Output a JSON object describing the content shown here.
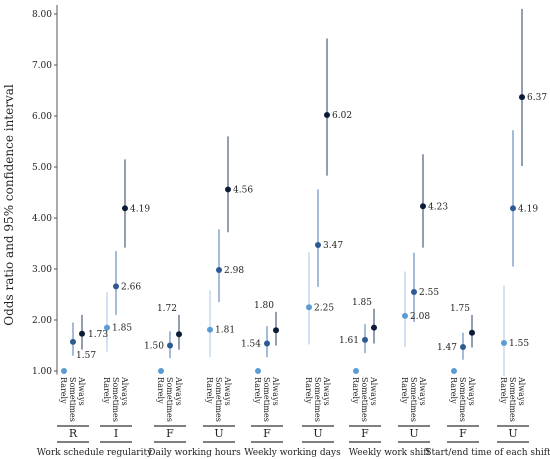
{
  "chart_data": {
    "type": "scatter",
    "title": "",
    "xlabel": "",
    "ylabel": "Odds ratio and 95% confidence interval",
    "ylim": [
      1.0,
      8.1
    ],
    "yticks": [
      "1.00",
      "2.00",
      "3.00",
      "4.00",
      "5.00",
      "6.00",
      "7.00",
      "8.00"
    ],
    "grid": false,
    "legend": "none",
    "levels": [
      "Rarely",
      "Sometimes",
      "Always"
    ],
    "colors": {
      "Rarely": "#5b9bd5",
      "Sometimes": "#2e5a94",
      "Always": "#0d1b3a",
      "lowCI": "#a9c6e8",
      "midCI": "#4a78b5",
      "highCI": "#283c5e"
    },
    "groups": [
      {
        "name": "Work schedule regularity",
        "subgroups": [
          {
            "code": "R",
            "points": [
              {
                "level": "Rarely",
                "value": 1.0,
                "ci": [
                  1.0,
                  1.0
                ],
                "label": ""
              },
              {
                "level": "Sometimes",
                "value": 1.57,
                "ci": [
                  1.3,
                  1.95
                ],
                "label": "1.57"
              },
              {
                "level": "Always",
                "value": 1.73,
                "ci": [
                  1.42,
                  2.1
                ],
                "label": "1.73"
              }
            ]
          },
          {
            "code": "I",
            "points": [
              {
                "level": "Rarely",
                "value": 1.85,
                "ci": [
                  1.38,
                  2.55
                ],
                "label": "1.85"
              },
              {
                "level": "Sometimes",
                "value": 2.66,
                "ci": [
                  2.1,
                  3.35
                ],
                "label": "2.66"
              },
              {
                "level": "Always",
                "value": 4.19,
                "ci": [
                  3.42,
                  5.15
                ],
                "label": "4.19"
              }
            ]
          }
        ]
      },
      {
        "name": "Daily working hours",
        "subgroups": [
          {
            "code": "F",
            "points": [
              {
                "level": "Rarely",
                "value": 1.0,
                "ci": [
                  1.0,
                  1.0
                ],
                "label": ""
              },
              {
                "level": "Sometimes",
                "value": 1.5,
                "ci": [
                  1.25,
                  1.78
                ],
                "label": "1.50"
              },
              {
                "level": "Always",
                "value": 1.72,
                "ci": [
                  1.42,
                  2.1
                ],
                "label": "1.72"
              }
            ]
          },
          {
            "code": "U",
            "points": [
              {
                "level": "Rarely",
                "value": 1.81,
                "ci": [
                  1.27,
                  2.58
                ],
                "label": "1.81"
              },
              {
                "level": "Sometimes",
                "value": 2.98,
                "ci": [
                  2.35,
                  3.78
                ],
                "label": "2.98"
              },
              {
                "level": "Always",
                "value": 4.56,
                "ci": [
                  3.72,
                  5.6
                ],
                "label": "4.56"
              }
            ]
          }
        ]
      },
      {
        "name": "Weekly working days",
        "subgroups": [
          {
            "code": "F",
            "points": [
              {
                "level": "Rarely",
                "value": 1.0,
                "ci": [
                  1.0,
                  1.0
                ],
                "label": ""
              },
              {
                "level": "Sometimes",
                "value": 1.54,
                "ci": [
                  1.27,
                  1.88
                ],
                "label": "1.54"
              },
              {
                "level": "Always",
                "value": 1.8,
                "ci": [
                  1.5,
                  2.16
                ],
                "label": "1.80"
              }
            ]
          },
          {
            "code": "U",
            "points": [
              {
                "level": "Rarely",
                "value": 2.25,
                "ci": [
                  1.52,
                  3.33
                ],
                "label": "2.25"
              },
              {
                "level": "Sometimes",
                "value": 3.47,
                "ci": [
                  2.65,
                  4.56
                ],
                "label": "3.47"
              },
              {
                "level": "Always",
                "value": 6.02,
                "ci": [
                  4.83,
                  7.52
                ],
                "label": "6.02"
              }
            ]
          }
        ]
      },
      {
        "name": "Weekly work shift",
        "subgroups": [
          {
            "code": "F",
            "points": [
              {
                "level": "Rarely",
                "value": 1.0,
                "ci": [
                  1.0,
                  1.0
                ],
                "label": ""
              },
              {
                "level": "Sometimes",
                "value": 1.61,
                "ci": [
                  1.35,
                  1.92
                ],
                "label": "1.61"
              },
              {
                "level": "Always",
                "value": 1.85,
                "ci": [
                  1.54,
                  2.22
                ],
                "label": "1.85"
              }
            ]
          },
          {
            "code": "U",
            "points": [
              {
                "level": "Rarely",
                "value": 2.08,
                "ci": [
                  1.47,
                  2.95
                ],
                "label": "2.08"
              },
              {
                "level": "Sometimes",
                "value": 2.55,
                "ci": [
                  1.96,
                  3.32
                ],
                "label": "2.55"
              },
              {
                "level": "Always",
                "value": 4.23,
                "ci": [
                  3.42,
                  5.25
                ],
                "label": "4.23"
              }
            ]
          }
        ]
      },
      {
        "name": "Start/end time of each shift",
        "subgroups": [
          {
            "code": "F",
            "points": [
              {
                "level": "Rarely",
                "value": 1.0,
                "ci": [
                  1.0,
                  1.0
                ],
                "label": ""
              },
              {
                "level": "Sometimes",
                "value": 1.47,
                "ci": [
                  1.22,
                  1.75
                ],
                "label": "1.47"
              },
              {
                "level": "Always",
                "value": 1.75,
                "ci": [
                  1.46,
                  2.1
                ],
                "label": "1.75"
              }
            ]
          },
          {
            "code": "U",
            "points": [
              {
                "level": "Rarely",
                "value": 1.55,
                "ci": [
                  0.9,
                  2.68
                ],
                "label": "1.55"
              },
              {
                "level": "Sometimes",
                "value": 4.19,
                "ci": [
                  3.05,
                  5.72
                ],
                "label": "4.19"
              },
              {
                "level": "Always",
                "value": 6.37,
                "ci": [
                  5.02,
                  8.1
                ],
                "label": "6.37"
              }
            ]
          }
        ]
      }
    ]
  }
}
